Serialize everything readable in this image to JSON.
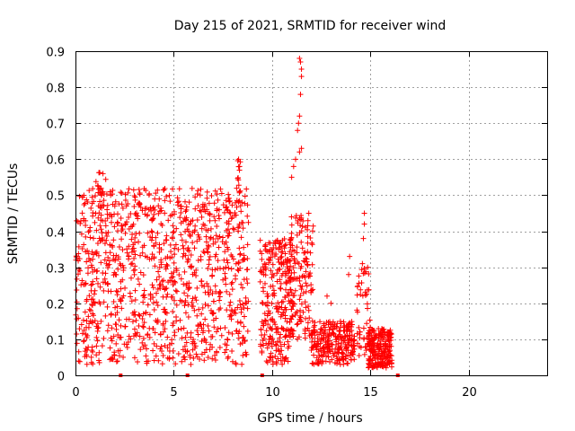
{
  "chart_data": {
    "type": "scatter",
    "title": "Day 215 of 2021, SRMTID for receiver wind",
    "xlabel": "GPS time / hours",
    "ylabel": "SRMTID / TECUs",
    "xlim": [
      0,
      24
    ],
    "ylim": [
      0,
      0.9
    ],
    "x_ticks": [
      0,
      5,
      10,
      15,
      20
    ],
    "x_tick_labels": [
      "0",
      "5",
      "10",
      "15",
      "20"
    ],
    "y_ticks": [
      0,
      0.1,
      0.2,
      0.3,
      0.4,
      0.5,
      0.6,
      0.7,
      0.8,
      0.9
    ],
    "y_tick_labels": [
      "0",
      "0.1",
      "0.2",
      "0.3",
      "0.4",
      "0.5",
      "0.6",
      "0.7",
      "0.8",
      "0.9"
    ],
    "grid": true,
    "marker": "+",
    "color": "#ff0000",
    "axis_markers_x": [
      2.3,
      5.7,
      9.5,
      16.4
    ],
    "series": [
      {
        "name": "SRMTID",
        "clusters": [
          {
            "x_range": [
              0.0,
              8.8
            ],
            "y_range": [
              0.03,
              0.52
            ],
            "count": 1100
          },
          {
            "x_range": [
              1.0,
              1.6
            ],
            "y_range": [
              0.5,
              0.57
            ],
            "count": 12
          },
          {
            "x_range": [
              8.1,
              8.4
            ],
            "y_range": [
              0.5,
              0.6
            ],
            "count": 10
          },
          {
            "x_range": [
              9.4,
              11.0
            ],
            "y_range": [
              0.03,
              0.38
            ],
            "count": 260
          },
          {
            "x_range": [
              10.9,
              12.1
            ],
            "y_range": [
              0.1,
              0.45
            ],
            "count": 150
          },
          {
            "x_range": [
              12.0,
              14.2
            ],
            "y_range": [
              0.03,
              0.15
            ],
            "count": 260
          },
          {
            "x_range": [
              14.3,
              15.0
            ],
            "y_range": [
              0.05,
              0.3
            ],
            "count": 50
          },
          {
            "x_range": [
              14.9,
              16.1
            ],
            "y_range": [
              0.02,
              0.13
            ],
            "count": 220
          }
        ],
        "points": [
          {
            "x": 11.4,
            "y": 0.88
          },
          {
            "x": 11.45,
            "y": 0.87
          },
          {
            "x": 11.5,
            "y": 0.85
          },
          {
            "x": 11.5,
            "y": 0.83
          },
          {
            "x": 11.45,
            "y": 0.78
          },
          {
            "x": 11.4,
            "y": 0.72
          },
          {
            "x": 11.35,
            "y": 0.7
          },
          {
            "x": 11.3,
            "y": 0.68
          },
          {
            "x": 11.5,
            "y": 0.63
          },
          {
            "x": 11.4,
            "y": 0.62
          },
          {
            "x": 11.2,
            "y": 0.6
          },
          {
            "x": 11.1,
            "y": 0.58
          },
          {
            "x": 11.0,
            "y": 0.55
          },
          {
            "x": 8.3,
            "y": 0.6
          },
          {
            "x": 8.35,
            "y": 0.58
          },
          {
            "x": 12.8,
            "y": 0.22
          },
          {
            "x": 13.0,
            "y": 0.2
          },
          {
            "x": 13.9,
            "y": 0.28
          },
          {
            "x": 13.95,
            "y": 0.33
          },
          {
            "x": 14.7,
            "y": 0.45
          },
          {
            "x": 14.7,
            "y": 0.42
          },
          {
            "x": 14.65,
            "y": 0.38
          },
          {
            "x": 14.6,
            "y": 0.31
          }
        ]
      }
    ]
  }
}
